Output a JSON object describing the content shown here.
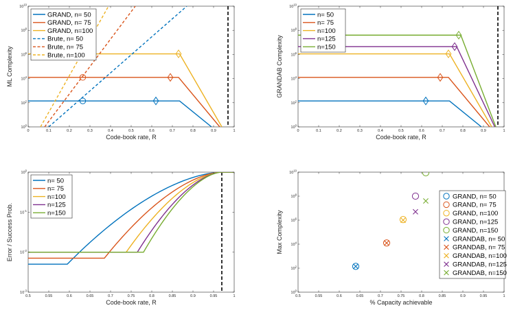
{
  "colors": {
    "n50": "#0072BD",
    "n75": "#D95319",
    "n100": "#EDB120",
    "n125": "#7E2F8E",
    "n150": "#77AC30",
    "capacity": "#000000",
    "axis": "#262626"
  },
  "chart_data": [
    {
      "id": "ml",
      "type": "line",
      "xlabel": "Code-book rate, R",
      "ylabel": "ML Complexity",
      "xlim": [
        0,
        1
      ],
      "ylim_log10": [
        0,
        10
      ],
      "xticks": [
        "0",
        "0.1",
        "0.2",
        "0.3",
        "0.4",
        "0.5",
        "0.6",
        "0.7",
        "0.8",
        "0.9",
        "1"
      ],
      "yticks": [
        "10^0",
        "10^2",
        "10^4",
        "10^6",
        "10^8",
        "10^10"
      ],
      "legend_position": "top-left",
      "capacity_line_x": 0.97,
      "series": [
        {
          "name": "GRAND, n= 50",
          "color": "n50",
          "dash": false,
          "x": [
            0,
            0.735,
            0.89
          ],
          "log10y": [
            2.15,
            2.15,
            0
          ]
        },
        {
          "name": "GRAND, n= 75",
          "color": "n75",
          "dash": false,
          "x": [
            0,
            0.73,
            0.93
          ],
          "log10y": [
            4.1,
            4.1,
            0
          ]
        },
        {
          "name": "GRAND, n=100",
          "color": "n100",
          "dash": false,
          "x": [
            0,
            0.735,
            0.94
          ],
          "log10y": [
            6.05,
            6.05,
            0
          ]
        },
        {
          "name": "Brute, n= 50",
          "color": "n50",
          "dash": true,
          "x": [
            0.1,
            0.77
          ],
          "log10y": [
            0,
            10
          ]
        },
        {
          "name": "Brute, n= 75",
          "color": "n75",
          "dash": true,
          "x": [
            0.08,
            0.52
          ],
          "log10y": [
            0,
            10
          ]
        },
        {
          "name": "Brute, n=100",
          "color": "n100",
          "dash": true,
          "x": [
            0.06,
            0.39
          ],
          "log10y": [
            0,
            10
          ]
        }
      ],
      "markers": [
        {
          "shape": "circle",
          "color": "n50",
          "x": 0.265,
          "log10y": 2.15
        },
        {
          "shape": "circle",
          "color": "n75",
          "x": 0.265,
          "log10y": 4.1
        },
        {
          "shape": "diamond",
          "color": "n50",
          "x": 0.62,
          "log10y": 2.15
        },
        {
          "shape": "diamond",
          "color": "n75",
          "x": 0.69,
          "log10y": 4.1
        },
        {
          "shape": "diamond",
          "color": "n100",
          "x": 0.73,
          "log10y": 6.05
        }
      ]
    },
    {
      "id": "grandab",
      "type": "line",
      "xlabel": "Code-book rate, R",
      "ylabel": "GRANDAB Complexity",
      "xlim": [
        0,
        1
      ],
      "ylim_log10": [
        0,
        10
      ],
      "xticks": [
        "0",
        "0.1",
        "0.2",
        "0.3",
        "0.4",
        "0.5",
        "0.6",
        "0.7",
        "0.8",
        "0.9",
        "1"
      ],
      "yticks": [
        "10^0",
        "10^2",
        "10^4",
        "10^6",
        "10^8",
        "10^10"
      ],
      "legend_position": "top-left",
      "capacity_line_x": 0.97,
      "series": [
        {
          "name": "n= 50",
          "color": "n50",
          "x": [
            0,
            0.735,
            0.89
          ],
          "log10y": [
            2.15,
            2.15,
            0
          ]
        },
        {
          "name": "n= 75",
          "color": "n75",
          "x": [
            0,
            0.73,
            0.93
          ],
          "log10y": [
            4.1,
            4.1,
            0
          ]
        },
        {
          "name": "n=100",
          "color": "n100",
          "x": [
            0,
            0.735,
            0.94
          ],
          "log10y": [
            6.05,
            6.05,
            0
          ]
        },
        {
          "name": "n=125",
          "color": "n125",
          "x": [
            0,
            0.77,
            0.955
          ],
          "log10y": [
            6.65,
            6.65,
            0
          ]
        },
        {
          "name": "n=150",
          "color": "n150",
          "x": [
            0,
            0.79,
            0.96
          ],
          "log10y": [
            7.6,
            7.6,
            0
          ]
        }
      ],
      "markers": [
        {
          "shape": "diamond",
          "color": "n50",
          "x": 0.62,
          "log10y": 2.15
        },
        {
          "shape": "diamond",
          "color": "n75",
          "x": 0.69,
          "log10y": 4.1
        },
        {
          "shape": "diamond",
          "color": "n100",
          "x": 0.73,
          "log10y": 6.05
        },
        {
          "shape": "diamond",
          "color": "n125",
          "x": 0.76,
          "log10y": 6.65
        },
        {
          "shape": "diamond",
          "color": "n150",
          "x": 0.78,
          "log10y": 7.6
        }
      ]
    },
    {
      "id": "error",
      "type": "line",
      "xlabel": "Code-book rate, R",
      "ylabel": "Error / Success Prob.",
      "xlim": [
        0.5,
        1
      ],
      "ylim_log10": [
        -3,
        0
      ],
      "xticks": [
        "0.5",
        "0.55",
        "0.6",
        "0.65",
        "0.7",
        "0.75",
        "0.8",
        "0.85",
        "0.9",
        "0.95",
        "1"
      ],
      "yticks": [
        "10^-3",
        "10^-2",
        "10^-1",
        "10^0"
      ],
      "legend_position": "top-left",
      "capacity_line_x": 0.97,
      "series": [
        {
          "name": "n= 50",
          "color": "n50",
          "floor_log10": -2.3,
          "knee": 0.595
        },
        {
          "name": "n= 75",
          "color": "n75",
          "floor_log10": -2.15,
          "knee": 0.685
        },
        {
          "name": "n=100",
          "color": "n100",
          "floor_log10": -2.0,
          "knee": 0.738
        },
        {
          "name": "n=125",
          "color": "n125",
          "floor_log10": -2.0,
          "knee": 0.765
        },
        {
          "name": "n=150",
          "color": "n150",
          "floor_log10": -2.0,
          "knee": 0.78
        }
      ],
      "converge_x": 0.97
    },
    {
      "id": "max",
      "type": "scatter",
      "xlabel": "% Capacity achievable",
      "ylabel": "Max Complexity",
      "xlim": [
        0.5,
        1
      ],
      "ylim_log10": [
        0,
        10
      ],
      "xticks": [
        "0.5",
        "0.55",
        "0.6",
        "0.65",
        "0.7",
        "0.75",
        "0.8",
        "0.85",
        "0.9",
        "0.95",
        "1"
      ],
      "yticks": [
        "10^0",
        "10^2",
        "10^4",
        "10^6",
        "10^8",
        "10^10"
      ],
      "legend_position": "right",
      "series": [
        {
          "name": "GRAND, n= 50",
          "color": "n50",
          "marker": "circle",
          "x": 0.64,
          "log10y": 2.15
        },
        {
          "name": "GRAND, n= 75",
          "color": "n75",
          "marker": "circle",
          "x": 0.715,
          "log10y": 4.1
        },
        {
          "name": "GRAND, n=100",
          "color": "n100",
          "marker": "circle",
          "x": 0.755,
          "log10y": 6.05
        },
        {
          "name": "GRAND, n=125",
          "color": "n125",
          "marker": "circle",
          "x": 0.785,
          "log10y": 8.0
        },
        {
          "name": "GRAND, n=150",
          "color": "n150",
          "marker": "circle",
          "x": 0.81,
          "log10y": 9.95
        },
        {
          "name": "GRANDAB, n= 50",
          "color": "n50",
          "marker": "x",
          "x": 0.64,
          "log10y": 2.15
        },
        {
          "name": "GRANDAB, n= 75",
          "color": "n75",
          "marker": "x",
          "x": 0.715,
          "log10y": 4.1
        },
        {
          "name": "GRANDAB, n=100",
          "color": "n100",
          "marker": "x",
          "x": 0.755,
          "log10y": 6.0
        },
        {
          "name": "GRANDAB, n=125",
          "color": "n125",
          "marker": "x",
          "x": 0.785,
          "log10y": 6.7
        },
        {
          "name": "GRANDAB, n=150",
          "color": "n150",
          "marker": "x",
          "x": 0.81,
          "log10y": 7.6
        }
      ]
    }
  ]
}
